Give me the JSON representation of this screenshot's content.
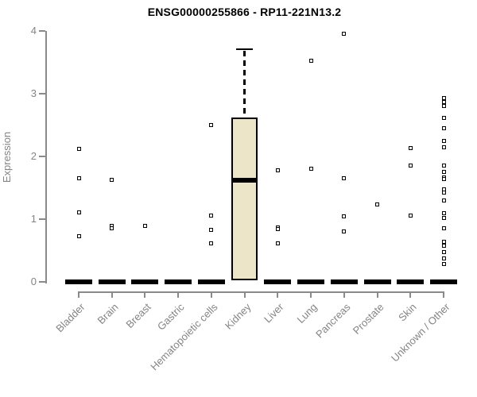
{
  "title": "ENSG00000255866 - RP11-221N13.2",
  "chart_data": {
    "type": "boxplot",
    "title": "ENSG00000255866 - RP11-221N13.2",
    "ylabel": "Expression",
    "xlabel": "",
    "ylim": [
      0,
      4
    ],
    "yticks": [
      0,
      1,
      2,
      3,
      4
    ],
    "grid": false,
    "legend": null,
    "marker_style": "open-square",
    "categories": [
      "Bladder",
      "Brain",
      "Breast",
      "Gastric",
      "Hematopoietic cells",
      "Kidney",
      "Liver",
      "Lung",
      "Pancreas",
      "Prostate",
      "Skin",
      "Unknown / Other"
    ],
    "series": [
      {
        "category": "Bladder",
        "median": 0,
        "outliers": [
          2.12,
          1.65,
          1.11,
          0.73
        ]
      },
      {
        "category": "Brain",
        "median": 0,
        "outliers": [
          1.63,
          0.89,
          0.86
        ]
      },
      {
        "category": "Breast",
        "median": 0,
        "outliers": [
          0.89
        ]
      },
      {
        "category": "Gastric",
        "median": 0,
        "outliers": []
      },
      {
        "category": "Hematopoietic cells",
        "median": 0,
        "outliers": [
          2.5,
          1.06,
          0.83,
          0.61
        ]
      },
      {
        "category": "Kidney",
        "box": {
          "whisker_low": 0.03,
          "q1": 0.03,
          "median": 1.62,
          "q3": 2.62,
          "whisker_high": 3.71
        },
        "outliers": []
      },
      {
        "category": "Liver",
        "median": 0,
        "outliers": [
          1.78,
          0.87,
          0.84,
          0.62
        ]
      },
      {
        "category": "Lung",
        "median": 0,
        "outliers": [
          3.52,
          1.8
        ]
      },
      {
        "category": "Pancreas",
        "median": 0,
        "outliers": [
          3.95,
          1.65,
          1.05,
          0.81
        ]
      },
      {
        "category": "Prostate",
        "median": 0,
        "outliers": [
          1.24
        ]
      },
      {
        "category": "Skin",
        "median": 0,
        "outliers": [
          2.13,
          1.86,
          1.06
        ]
      },
      {
        "category": "Unknown / Other",
        "median": 0,
        "outliers": [
          2.93,
          2.87,
          2.81,
          2.61,
          2.45,
          2.25,
          2.14,
          1.85,
          1.75,
          1.67,
          1.64,
          1.48,
          1.43,
          1.3,
          1.09,
          1.02,
          0.85,
          0.64,
          0.57,
          0.48,
          0.37,
          0.29
        ]
      }
    ],
    "colors": {
      "box_fill": "#ece5c8",
      "box_border": "#000000",
      "marker": "#000000",
      "axis": "#8a8a8a",
      "tick_label": "#848484",
      "title": "#000000"
    }
  }
}
